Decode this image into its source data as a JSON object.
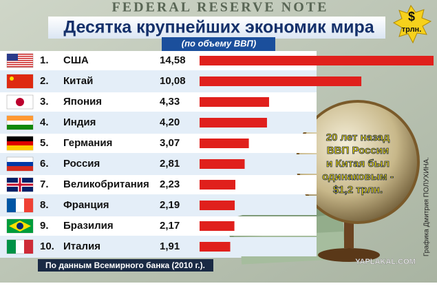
{
  "chart_data": {
    "type": "bar",
    "orientation": "horizontal",
    "title": "Десятка крупнейших экономик мира",
    "subtitle": "(по объему ВВП)",
    "unit_badge": {
      "symbol": "$",
      "label": "трлн."
    },
    "background_text": "FEDERAL RESERVE NOTE",
    "ranks": [
      "1.",
      "2.",
      "3.",
      "4.",
      "5.",
      "6.",
      "7.",
      "8.",
      "9.",
      "10."
    ],
    "categories": [
      "США",
      "Китай",
      "Япония",
      "Индия",
      "Германия",
      "Россия",
      "Великобритания",
      "Франция",
      "Бразилия",
      "Италия"
    ],
    "label_colors": [
      "#111111",
      "#e0201c",
      "#111111",
      "#111111",
      "#111111",
      "#e0201c",
      "#111111",
      "#111111",
      "#111111",
      "#111111"
    ],
    "values": [
      14.58,
      10.08,
      4.33,
      4.2,
      3.07,
      2.81,
      2.23,
      2.19,
      2.17,
      1.91
    ],
    "value_labels": [
      "14,58",
      "10,08",
      "4,33",
      "4,20",
      "3,07",
      "2,81",
      "2,23",
      "2,19",
      "2,17",
      "1,91"
    ],
    "color": "#e0201c",
    "annotation": [
      "20 лет назад",
      "ВВП России",
      "и Китая был",
      "одинаковым -",
      "$1,2 трлн."
    ],
    "source": "По данным Всемирного банка (2010 г.).",
    "credit": "Графика Дмитрия ПОЛУХИНА.",
    "watermark": "YAPLAKAL.COM"
  }
}
